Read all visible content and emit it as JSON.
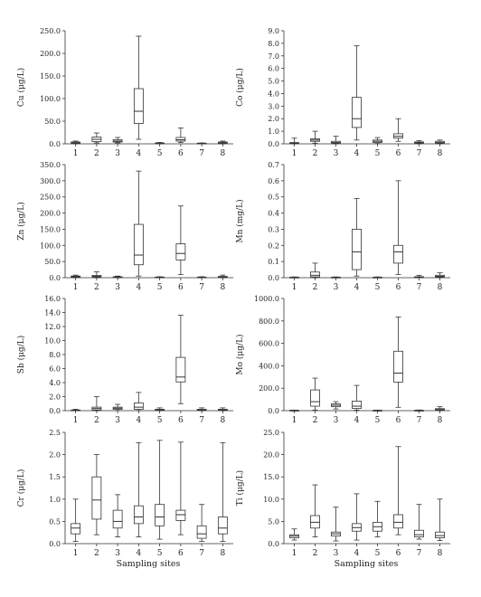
{
  "figure": {
    "x_axis_label": "Sampling sites",
    "colors": {
      "box_fill": "#ffffff",
      "stroke": "#333333",
      "text": "#222222"
    }
  },
  "chart_data": [
    {
      "type": "boxplot",
      "ylabel": "Cu (μg/L)",
      "ylim": [
        0,
        250
      ],
      "yticks": [
        "0.0",
        "50.0",
        "100.0",
        "150.0",
        "200.0",
        "250.0"
      ],
      "yticks_values": [
        0,
        50,
        100,
        150,
        200,
        250
      ],
      "categories": [
        "1",
        "2",
        "3",
        "4",
        "5",
        "6",
        "7",
        "8"
      ],
      "boxes": [
        {
          "min": 0,
          "q1": 1,
          "median": 2,
          "q3": 4,
          "max": 6
        },
        {
          "min": 2,
          "q1": 5,
          "median": 10,
          "q3": 15,
          "max": 24
        },
        {
          "min": 2,
          "q1": 4,
          "median": 6,
          "q3": 9,
          "max": 14
        },
        {
          "min": 10,
          "q1": 45,
          "median": 72,
          "q3": 122,
          "max": 238
        },
        {
          "min": 0,
          "q1": 0.5,
          "median": 1,
          "q3": 2,
          "max": 3
        },
        {
          "min": 3,
          "q1": 6,
          "median": 9,
          "q3": 14,
          "max": 35
        },
        {
          "min": 0,
          "q1": 0.5,
          "median": 1,
          "q3": 1.5,
          "max": 2
        },
        {
          "min": 0,
          "q1": 1,
          "median": 2,
          "q3": 4,
          "max": 6
        }
      ]
    },
    {
      "type": "boxplot",
      "ylabel": "Co (μg/L)",
      "ylim": [
        0,
        9
      ],
      "yticks": [
        "0.0",
        "1.0",
        "2.0",
        "3.0",
        "4.0",
        "5.0",
        "6.0",
        "7.0",
        "8.0",
        "9.0"
      ],
      "yticks_values": [
        0,
        1,
        2,
        3,
        4,
        5,
        6,
        7,
        8,
        9
      ],
      "categories": [
        "1",
        "2",
        "3",
        "4",
        "5",
        "6",
        "7",
        "8"
      ],
      "boxes": [
        {
          "min": 0,
          "q1": 0.02,
          "median": 0.05,
          "q3": 0.1,
          "max": 0.45
        },
        {
          "min": 0.05,
          "q1": 0.2,
          "median": 0.3,
          "q3": 0.4,
          "max": 1.0
        },
        {
          "min": 0,
          "q1": 0.05,
          "median": 0.1,
          "q3": 0.2,
          "max": 0.6
        },
        {
          "min": 0.3,
          "q1": 1.3,
          "median": 2.0,
          "q3": 3.7,
          "max": 7.8
        },
        {
          "min": 0.02,
          "q1": 0.1,
          "median": 0.2,
          "q3": 0.3,
          "max": 0.5
        },
        {
          "min": 0.2,
          "q1": 0.45,
          "median": 0.6,
          "q3": 0.8,
          "max": 2.0
        },
        {
          "min": 0,
          "q1": 0.05,
          "median": 0.1,
          "q3": 0.15,
          "max": 0.25
        },
        {
          "min": 0,
          "q1": 0.05,
          "median": 0.1,
          "q3": 0.2,
          "max": 0.3
        }
      ]
    },
    {
      "type": "boxplot",
      "ylabel": "Zn (μg/L)",
      "ylim": [
        0,
        350
      ],
      "yticks": [
        "0.0",
        "50.0",
        "100.0",
        "150.0",
        "200.0",
        "250.0",
        "300.0",
        "350.0"
      ],
      "yticks_values": [
        0,
        50,
        100,
        150,
        200,
        250,
        300,
        350
      ],
      "categories": [
        "1",
        "2",
        "3",
        "4",
        "5",
        "6",
        "7",
        "8"
      ],
      "boxes": [
        {
          "min": 0,
          "q1": 1,
          "median": 3,
          "q3": 5,
          "max": 8
        },
        {
          "min": 0,
          "q1": 2,
          "median": 4,
          "q3": 7,
          "max": 18
        },
        {
          "min": 0,
          "q1": 1,
          "median": 2,
          "q3": 3,
          "max": 5
        },
        {
          "min": 5,
          "q1": 40,
          "median": 70,
          "q3": 165,
          "max": 330
        },
        {
          "min": 0,
          "q1": 0.5,
          "median": 1,
          "q3": 2,
          "max": 3
        },
        {
          "min": 10,
          "q1": 55,
          "median": 75,
          "q3": 105,
          "max": 222
        },
        {
          "min": 0,
          "q1": 0.5,
          "median": 1,
          "q3": 2,
          "max": 3
        },
        {
          "min": 0,
          "q1": 1,
          "median": 2,
          "q3": 4,
          "max": 8
        }
      ]
    },
    {
      "type": "boxplot",
      "ylabel": "Mn (mg/L)",
      "ylim": [
        0,
        0.7
      ],
      "yticks": [
        "0.0",
        "0.1",
        "0.2",
        "0.3",
        "0.4",
        "0.5",
        "0.6",
        "0.7"
      ],
      "yticks_values": [
        0,
        0.1,
        0.2,
        0.3,
        0.4,
        0.5,
        0.6,
        0.7
      ],
      "categories": [
        "1",
        "2",
        "3",
        "4",
        "5",
        "6",
        "7",
        "8"
      ],
      "boxes": [
        {
          "min": 0,
          "q1": 0.001,
          "median": 0.002,
          "q3": 0.003,
          "max": 0.005
        },
        {
          "min": 0,
          "q1": 0.005,
          "median": 0.015,
          "q3": 0.035,
          "max": 0.09
        },
        {
          "min": 0,
          "q1": 0.001,
          "median": 0.002,
          "q3": 0.003,
          "max": 0.005
        },
        {
          "min": 0.01,
          "q1": 0.05,
          "median": 0.16,
          "q3": 0.3,
          "max": 0.49
        },
        {
          "min": 0,
          "q1": 0.001,
          "median": 0.002,
          "q3": 0.003,
          "max": 0.005
        },
        {
          "min": 0.02,
          "q1": 0.09,
          "median": 0.16,
          "q3": 0.2,
          "max": 0.6
        },
        {
          "min": 0,
          "q1": 0.001,
          "median": 0.003,
          "q3": 0.006,
          "max": 0.015
        },
        {
          "min": 0,
          "q1": 0.004,
          "median": 0.008,
          "q3": 0.015,
          "max": 0.03
        }
      ]
    },
    {
      "type": "boxplot",
      "ylabel": "Sb (μg/L)",
      "ylim": [
        0,
        16
      ],
      "yticks": [
        "0.0",
        "2.0",
        "4.0",
        "6.0",
        "8.0",
        "10.0",
        "12.0",
        "14.0",
        "16.0"
      ],
      "yticks_values": [
        0,
        2,
        4,
        6,
        8,
        10,
        12,
        14,
        16
      ],
      "categories": [
        "1",
        "2",
        "3",
        "4",
        "5",
        "6",
        "7",
        "8"
      ],
      "boxes": [
        {
          "min": 0,
          "q1": 0.02,
          "median": 0.05,
          "q3": 0.1,
          "max": 0.2
        },
        {
          "min": 0,
          "q1": 0.1,
          "median": 0.3,
          "q3": 0.5,
          "max": 2.0
        },
        {
          "min": 0,
          "q1": 0.2,
          "median": 0.35,
          "q3": 0.5,
          "max": 0.9
        },
        {
          "min": 0,
          "q1": 0.2,
          "median": 0.5,
          "q3": 1.1,
          "max": 2.6
        },
        {
          "min": 0,
          "q1": 0.05,
          "median": 0.1,
          "q3": 0.2,
          "max": 0.4
        },
        {
          "min": 1.0,
          "q1": 4.1,
          "median": 4.8,
          "q3": 7.6,
          "max": 13.6
        },
        {
          "min": 0,
          "q1": 0.05,
          "median": 0.1,
          "q3": 0.2,
          "max": 0.4
        },
        {
          "min": 0,
          "q1": 0.05,
          "median": 0.1,
          "q3": 0.2,
          "max": 0.4
        }
      ]
    },
    {
      "type": "boxplot",
      "ylabel": "Mo (μg/L)",
      "ylim": [
        0,
        1000
      ],
      "yticks": [
        "0.0",
        "200.0",
        "400.0",
        "600.0",
        "800.0",
        "1000.0"
      ],
      "yticks_values": [
        0,
        200,
        400,
        600,
        800,
        1000
      ],
      "categories": [
        "1",
        "2",
        "3",
        "4",
        "5",
        "6",
        "7",
        "8"
      ],
      "boxes": [
        {
          "min": 0,
          "q1": 1,
          "median": 2,
          "q3": 3,
          "max": 5
        },
        {
          "min": 5,
          "q1": 40,
          "median": 80,
          "q3": 185,
          "max": 290
        },
        {
          "min": 15,
          "q1": 35,
          "median": 48,
          "q3": 60,
          "max": 80
        },
        {
          "min": 5,
          "q1": 20,
          "median": 40,
          "q3": 85,
          "max": 225
        },
        {
          "min": 0,
          "q1": 1,
          "median": 2,
          "q3": 3,
          "max": 5
        },
        {
          "min": 30,
          "q1": 255,
          "median": 335,
          "q3": 530,
          "max": 835
        },
        {
          "min": 0,
          "q1": 1,
          "median": 2,
          "q3": 3,
          "max": 6
        },
        {
          "min": 0,
          "q1": 5,
          "median": 10,
          "q3": 18,
          "max": 35
        }
      ]
    },
    {
      "type": "boxplot",
      "ylabel": "Cr (μg/L)",
      "ylim": [
        0,
        2.5
      ],
      "yticks": [
        "0.0",
        "0.5",
        "1.0",
        "1.5",
        "2.0",
        "2.5"
      ],
      "yticks_values": [
        0,
        0.5,
        1,
        1.5,
        2,
        2.5
      ],
      "categories": [
        "1",
        "2",
        "3",
        "4",
        "5",
        "6",
        "7",
        "8"
      ],
      "boxes": [
        {
          "min": 0.05,
          "q1": 0.22,
          "median": 0.35,
          "q3": 0.45,
          "max": 1.0
        },
        {
          "min": 0.2,
          "q1": 0.55,
          "median": 0.98,
          "q3": 1.5,
          "max": 2.0
        },
        {
          "min": 0.15,
          "q1": 0.35,
          "median": 0.5,
          "q3": 0.75,
          "max": 1.1
        },
        {
          "min": 0.15,
          "q1": 0.45,
          "median": 0.6,
          "q3": 0.85,
          "max": 2.27
        },
        {
          "min": 0.1,
          "q1": 0.4,
          "median": 0.6,
          "q3": 0.88,
          "max": 2.32
        },
        {
          "min": 0.2,
          "q1": 0.52,
          "median": 0.65,
          "q3": 0.75,
          "max": 2.28
        },
        {
          "min": 0.05,
          "q1": 0.12,
          "median": 0.22,
          "q3": 0.4,
          "max": 0.88
        },
        {
          "min": 0.05,
          "q1": 0.22,
          "median": 0.35,
          "q3": 0.6,
          "max": 2.27
        }
      ]
    },
    {
      "type": "boxplot",
      "ylabel": "Ti (μg/L)",
      "ylim": [
        0,
        25
      ],
      "yticks": [
        "0.0",
        "5.0",
        "10.0",
        "15.0",
        "20.0",
        "25.0"
      ],
      "yticks_values": [
        0,
        5,
        10,
        15,
        20,
        25
      ],
      "categories": [
        "1",
        "2",
        "3",
        "4",
        "5",
        "6",
        "7",
        "8"
      ],
      "boxes": [
        {
          "min": 0.8,
          "q1": 1.3,
          "median": 1.7,
          "q3": 2.0,
          "max": 3.3
        },
        {
          "min": 1.5,
          "q1": 3.5,
          "median": 4.8,
          "q3": 6.3,
          "max": 13.2
        },
        {
          "min": 0.6,
          "q1": 1.7,
          "median": 2.2,
          "q3": 2.6,
          "max": 8.2
        },
        {
          "min": 0.8,
          "q1": 2.8,
          "median": 3.6,
          "q3": 4.5,
          "max": 11.2
        },
        {
          "min": 1.5,
          "q1": 2.8,
          "median": 3.8,
          "q3": 4.8,
          "max": 9.5
        },
        {
          "min": 2.0,
          "q1": 3.5,
          "median": 4.8,
          "q3": 6.5,
          "max": 21.8
        },
        {
          "min": 1.0,
          "q1": 1.5,
          "median": 2.0,
          "q3": 3.0,
          "max": 8.8
        },
        {
          "min": 0.7,
          "q1": 1.3,
          "median": 1.8,
          "q3": 2.6,
          "max": 10.0
        }
      ]
    }
  ]
}
